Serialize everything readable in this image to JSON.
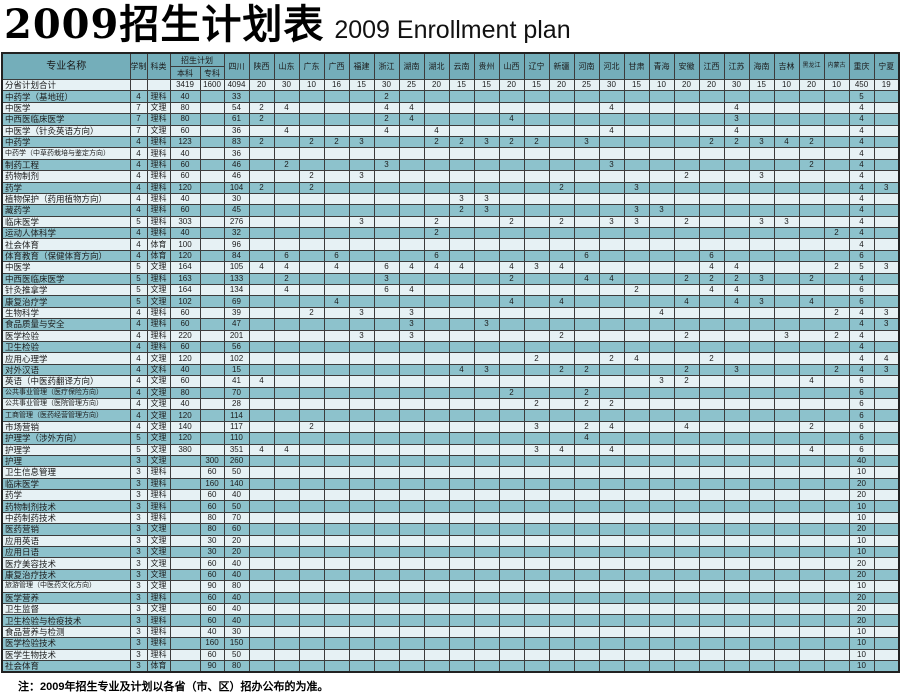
{
  "title": {
    "zh": "2009招生计划表",
    "en": "2009 Enrollment plan"
  },
  "note": "注：2009年招生专业及计划以各省（市、区）招办公布的为准。",
  "colors": {
    "header_bg": "#74aeba",
    "row_dark": "#8dc2cc",
    "row_light": "#e6f1f4",
    "grid": "#3c3c3c",
    "outer_border": "#222222",
    "text": "#1c1c1c"
  },
  "table": {
    "header": {
      "major": "专业名称",
      "duration": "学制",
      "category": "科类",
      "plan": "招生计划",
      "benke": "本科",
      "zhuanke": "专科",
      "provinces": [
        "四川",
        "陕西",
        "山东",
        "广东",
        "广西",
        "福建",
        "浙江",
        "湖南",
        "湖北",
        "云南",
        "贵州",
        "山西",
        "辽宁",
        "新疆",
        "河南",
        "河北",
        "甘肃",
        "青海",
        "安徽",
        "江西",
        "江苏",
        "海南",
        "吉林",
        "黑龙江",
        "内蒙古",
        "重庆",
        "宁夏"
      ]
    },
    "rows": [
      {
        "name": "分省计划合计",
        "duration": "",
        "category": "",
        "benke": "3419",
        "zhuanke": "1600",
        "values": {
          "四川": 4094,
          "陕西": 20,
          "山东": 30,
          "广东": 10,
          "广西": 16,
          "福建": 15,
          "浙江": 30,
          "湖南": 25,
          "湖北": 20,
          "云南": 15,
          "贵州": 15,
          "山西": 20,
          "辽宁": 15,
          "新疆": 20,
          "河南": 25,
          "河北": 30,
          "甘肃": 15,
          "青海": 10,
          "安徽": 20,
          "江西": 20,
          "江苏": 30,
          "海南": 15,
          "吉林": 10,
          "黑龙江": 20,
          "内蒙古": 10,
          "重庆": 450,
          "宁夏": 19
        }
      },
      {
        "name": "中药学（基地班）",
        "duration": "4",
        "category": "理科",
        "benke": "40",
        "zhuanke": "",
        "values": {
          "四川": 33,
          "浙江": 2,
          "重庆": 5
        }
      },
      {
        "name": "中医学",
        "duration": "7",
        "category": "文理",
        "benke": "80",
        "zhuanke": "",
        "values": {
          "四川": 54,
          "陕西": 2,
          "山东": 4,
          "浙江": 4,
          "湖南": 4,
          "河北": 4,
          "江苏": 4,
          "重庆": 4
        }
      },
      {
        "name": "中西医临床医学",
        "duration": "7",
        "category": "理科",
        "benke": "80",
        "zhuanke": "",
        "values": {
          "四川": 61,
          "陕西": 2,
          "浙江": 2,
          "湖南": 4,
          "山西": 4,
          "江苏": 3,
          "重庆": 4
        }
      },
      {
        "name": "中医学（针灸英语方向）",
        "duration": "7",
        "category": "文理",
        "benke": "60",
        "zhuanke": "",
        "values": {
          "四川": 36,
          "山东": 4,
          "浙江": 4,
          "湖北": 4,
          "河北": 4,
          "江苏": 4,
          "重庆": 4
        }
      },
      {
        "name": "中药学",
        "duration": "4",
        "category": "理科",
        "benke": "123",
        "zhuanke": "",
        "values": {
          "四川": 83,
          "陕西": 2,
          "广东": 2,
          "广西": 2,
          "福建": 3,
          "湖北": 2,
          "云南": 2,
          "贵州": 3,
          "山西": 2,
          "辽宁": 2,
          "河南": 3,
          "江西": 2,
          "江苏": 2,
          "海南": 3,
          "吉林": 4,
          "黑龙江": 2,
          "重庆": 4
        }
      },
      {
        "name": "中药学（中草药栽培与鉴定方向）",
        "duration": "4",
        "category": "理科",
        "benke": "40",
        "zhuanke": "",
        "values": {
          "四川": 36,
          "重庆": 4
        }
      },
      {
        "name": "制药工程",
        "duration": "4",
        "category": "理科",
        "benke": "60",
        "zhuanke": "",
        "values": {
          "四川": 46,
          "山东": 2,
          "浙江": 3,
          "河北": 3,
          "黑龙江": 2,
          "重庆": 4
        }
      },
      {
        "name": "药物制剂",
        "duration": "4",
        "category": "理科",
        "benke": "60",
        "zhuanke": "",
        "values": {
          "四川": 46,
          "广东": 2,
          "福建": 3,
          "安徽": 2,
          "海南": 3,
          "重庆": 4
        }
      },
      {
        "name": "药学",
        "duration": "4",
        "category": "理科",
        "benke": "120",
        "zhuanke": "",
        "values": {
          "四川": 104,
          "陕西": 2,
          "广东": 2,
          "新疆": 2,
          "甘肃": 3,
          "重庆": 4,
          "宁夏": 3
        }
      },
      {
        "name": "植物保护（药用植物方向）",
        "duration": "4",
        "category": "理科",
        "benke": "40",
        "zhuanke": "",
        "values": {
          "四川": 30,
          "云南": 3,
          "贵州": 3,
          "重庆": 4
        }
      },
      {
        "name": "藏药学",
        "duration": "4",
        "category": "理科",
        "benke": "60",
        "zhuanke": "",
        "values": {
          "四川": 45,
          "云南": 2,
          "贵州": 3,
          "甘肃": 3,
          "青海": 3,
          "重庆": 4
        }
      },
      {
        "name": "临床医学",
        "duration": "5",
        "category": "理科",
        "benke": "303",
        "zhuanke": "",
        "values": {
          "四川": 276,
          "福建": 3,
          "湖北": 2,
          "山西": 2,
          "新疆": 2,
          "河北": 3,
          "甘肃": 3,
          "安徽": 2,
          "海南": 3,
          "吉林": 3,
          "重庆": 4
        }
      },
      {
        "name": "运动人体科学",
        "duration": "4",
        "category": "理科",
        "benke": "40",
        "zhuanke": "",
        "values": {
          "四川": 32,
          "湖北": 2,
          "内蒙古": 2,
          "重庆": 4
        }
      },
      {
        "name": "社会体育",
        "duration": "4",
        "category": "体育",
        "benke": "100",
        "zhuanke": "",
        "values": {
          "四川": 96,
          "重庆": 4
        }
      },
      {
        "name": "体育教育（保健体育方向）",
        "duration": "4",
        "category": "体育",
        "benke": "120",
        "zhuanke": "",
        "values": {
          "四川": 84,
          "山东": 6,
          "广西": 6,
          "湖北": 6,
          "河南": 6,
          "江西": 6,
          "重庆": 6
        }
      },
      {
        "name": "中医学",
        "duration": "5",
        "category": "文理",
        "benke": "164",
        "zhuanke": "",
        "values": {
          "四川": 105,
          "陕西": 4,
          "山东": 4,
          "广西": 4,
          "浙江": 6,
          "湖南": 4,
          "湖北": 4,
          "云南": 4,
          "山西": 4,
          "辽宁": 3,
          "新疆": 4,
          "江西": 4,
          "江苏": 4,
          "内蒙古": 2,
          "重庆": 5,
          "宁夏": 3
        }
      },
      {
        "name": "中西医临床医学",
        "duration": "5",
        "category": "理科",
        "benke": "163",
        "zhuanke": "",
        "values": {
          "四川": 133,
          "山东": 2,
          "浙江": 3,
          "山西": 2,
          "河南": 4,
          "河北": 4,
          "安徽": 2,
          "江西": 2,
          "江苏": 2,
          "海南": 3,
          "黑龙江": 2,
          "重庆": 4
        }
      },
      {
        "name": "针灸推拿学",
        "duration": "5",
        "category": "文理",
        "benke": "164",
        "zhuanke": "",
        "values": {
          "四川": 134,
          "山东": 4,
          "浙江": 6,
          "湖南": 4,
          "甘肃": 2,
          "江西": 4,
          "江苏": 4,
          "重庆": 6
        }
      },
      {
        "name": "康复治疗学",
        "duration": "5",
        "category": "文理",
        "benke": "102",
        "zhuanke": "",
        "values": {
          "四川": 69,
          "广西": 4,
          "山西": 4,
          "新疆": 4,
          "安徽": 4,
          "江苏": 4,
          "海南": 3,
          "黑龙江": 4,
          "重庆": 6
        }
      },
      {
        "name": "生物科学",
        "duration": "4",
        "category": "理科",
        "benke": "60",
        "zhuanke": "",
        "values": {
          "四川": 39,
          "广东": 2,
          "福建": 3,
          "湖南": 3,
          "青海": 4,
          "内蒙古": 2,
          "重庆": 4,
          "宁夏": 3
        }
      },
      {
        "name": "食品质量与安全",
        "duration": "4",
        "category": "理科",
        "benke": "60",
        "zhuanke": "",
        "values": {
          "四川": 47,
          "湖南": 3,
          "贵州": 3,
          "重庆": 4,
          "宁夏": 3
        }
      },
      {
        "name": "医学检验",
        "duration": "4",
        "category": "理科",
        "benke": "220",
        "zhuanke": "",
        "values": {
          "四川": 201,
          "福建": 3,
          "湖南": 3,
          "新疆": 2,
          "安徽": 2,
          "吉林": 3,
          "内蒙古": 2,
          "重庆": 4
        }
      },
      {
        "name": "卫生检验",
        "duration": "4",
        "category": "理科",
        "benke": "60",
        "zhuanke": "",
        "values": {
          "四川": 56,
          "重庆": 4
        }
      },
      {
        "name": "应用心理学",
        "duration": "4",
        "category": "文理",
        "benke": "120",
        "zhuanke": "",
        "values": {
          "四川": 102,
          "辽宁": 2,
          "河北": 2,
          "甘肃": 4,
          "江西": 2,
          "重庆": 4,
          "宁夏": 4
        }
      },
      {
        "name": "对外汉语",
        "duration": "4",
        "category": "文科",
        "benke": "40",
        "zhuanke": "",
        "values": {
          "四川": 15,
          "云南": 4,
          "贵州": 3,
          "新疆": 2,
          "河南": 2,
          "安徽": 2,
          "江苏": 3,
          "内蒙古": 2,
          "重庆": 4,
          "宁夏": 3
        }
      },
      {
        "name": "英语（中医药翻译方向）",
        "duration": "4",
        "category": "文理",
        "benke": "60",
        "zhuanke": "",
        "values": {
          "四川": 41,
          "陕西": 4,
          "青海": 3,
          "安徽": 2,
          "黑龙江": 4,
          "重庆": 6
        }
      },
      {
        "name": "公共事业管理（医疗保险方向）",
        "duration": "4",
        "category": "文理",
        "benke": "80",
        "zhuanke": "",
        "values": {
          "四川": 70,
          "山西": 2,
          "河南": 2,
          "重庆": 6
        }
      },
      {
        "name": "公共事业管理（医院管理方向）",
        "duration": "4",
        "category": "文理",
        "benke": "40",
        "zhuanke": "",
        "values": {
          "四川": 28,
          "辽宁": 2,
          "河南": 2,
          "河北": 2,
          "重庆": 6
        }
      },
      {
        "name": "工商管理（医药经营管理方向）",
        "duration": "4",
        "category": "文理",
        "benke": "120",
        "zhuanke": "",
        "values": {
          "四川": 114,
          "重庆": 6
        }
      },
      {
        "name": "市场营销",
        "duration": "4",
        "category": "文理",
        "benke": "140",
        "zhuanke": "",
        "values": {
          "四川": 117,
          "广东": 2,
          "辽宁": 3,
          "河南": 2,
          "河北": 4,
          "安徽": 4,
          "黑龙江": 2,
          "重庆": 6
        }
      },
      {
        "name": "护理学（涉外方向）",
        "duration": "5",
        "category": "文理",
        "benke": "120",
        "zhuanke": "",
        "values": {
          "四川": 110,
          "河南": 4,
          "重庆": 6
        }
      },
      {
        "name": "护理学",
        "duration": "5",
        "category": "文理",
        "benke": "380",
        "zhuanke": "",
        "values": {
          "四川": 351,
          "陕西": 4,
          "山东": 4,
          "辽宁": 3,
          "新疆": 4,
          "河北": 4,
          "黑龙江": 4,
          "重庆": 6
        }
      },
      {
        "name": "护理",
        "duration": "3",
        "category": "文理",
        "benke": "",
        "zhuanke": "300",
        "values": {
          "四川": 260,
          "重庆": 40
        }
      },
      {
        "name": "卫生信息管理",
        "duration": "3",
        "category": "理科",
        "benke": "",
        "zhuanke": "60",
        "values": {
          "四川": 50,
          "重庆": 10
        }
      },
      {
        "name": "临床医学",
        "duration": "3",
        "category": "理科",
        "benke": "",
        "zhuanke": "160",
        "values": {
          "四川": 140,
          "重庆": 20
        }
      },
      {
        "name": "药学",
        "duration": "3",
        "category": "理科",
        "benke": "",
        "zhuanke": "60",
        "values": {
          "四川": 40,
          "重庆": 20
        }
      },
      {
        "name": "药物制剂技术",
        "duration": "3",
        "category": "理科",
        "benke": "",
        "zhuanke": "60",
        "values": {
          "四川": 50,
          "重庆": 10
        }
      },
      {
        "name": "中药制药技术",
        "duration": "3",
        "category": "理科",
        "benke": "",
        "zhuanke": "80",
        "values": {
          "四川": 70,
          "重庆": 10
        }
      },
      {
        "name": "医药营销",
        "duration": "3",
        "category": "文理",
        "benke": "",
        "zhuanke": "80",
        "values": {
          "四川": 60,
          "重庆": 20
        }
      },
      {
        "name": "应用英语",
        "duration": "3",
        "category": "文理",
        "benke": "",
        "zhuanke": "30",
        "values": {
          "四川": 20,
          "重庆": 10
        }
      },
      {
        "name": "应用日语",
        "duration": "3",
        "category": "文理",
        "benke": "",
        "zhuanke": "30",
        "values": {
          "四川": 20,
          "重庆": 10
        }
      },
      {
        "name": "医疗美容技术",
        "duration": "3",
        "category": "文理",
        "benke": "",
        "zhuanke": "60",
        "values": {
          "四川": 40,
          "重庆": 20
        }
      },
      {
        "name": "康复治疗技术",
        "duration": "3",
        "category": "文理",
        "benke": "",
        "zhuanke": "60",
        "values": {
          "四川": 40,
          "重庆": 20
        }
      },
      {
        "name": "旅游管理（中医药文化方向）",
        "duration": "3",
        "category": "文理",
        "benke": "",
        "zhuanke": "90",
        "values": {
          "四川": 80,
          "重庆": 10
        }
      },
      {
        "name": "医学营养",
        "duration": "3",
        "category": "理科",
        "benke": "",
        "zhuanke": "60",
        "values": {
          "四川": 40,
          "重庆": 20
        }
      },
      {
        "name": "卫生监督",
        "duration": "3",
        "category": "文理",
        "benke": "",
        "zhuanke": "60",
        "values": {
          "四川": 40,
          "重庆": 20
        }
      },
      {
        "name": "卫生检验与检疫技术",
        "duration": "3",
        "category": "理科",
        "benke": "",
        "zhuanke": "60",
        "values": {
          "四川": 40,
          "重庆": 20
        }
      },
      {
        "name": "食品营养与检测",
        "duration": "3",
        "category": "理科",
        "benke": "",
        "zhuanke": "40",
        "values": {
          "四川": 30,
          "重庆": 10
        }
      },
      {
        "name": "医学检验技术",
        "duration": "3",
        "category": "理科",
        "benke": "",
        "zhuanke": "160",
        "values": {
          "四川": 150,
          "重庆": 10
        }
      },
      {
        "name": "医学生物技术",
        "duration": "3",
        "category": "理科",
        "benke": "",
        "zhuanke": "60",
        "values": {
          "四川": 50,
          "重庆": 10
        }
      },
      {
        "name": "社会体育",
        "duration": "3",
        "category": "体育",
        "benke": "",
        "zhuanke": "90",
        "values": {
          "四川": 80,
          "重庆": 10
        }
      }
    ]
  }
}
